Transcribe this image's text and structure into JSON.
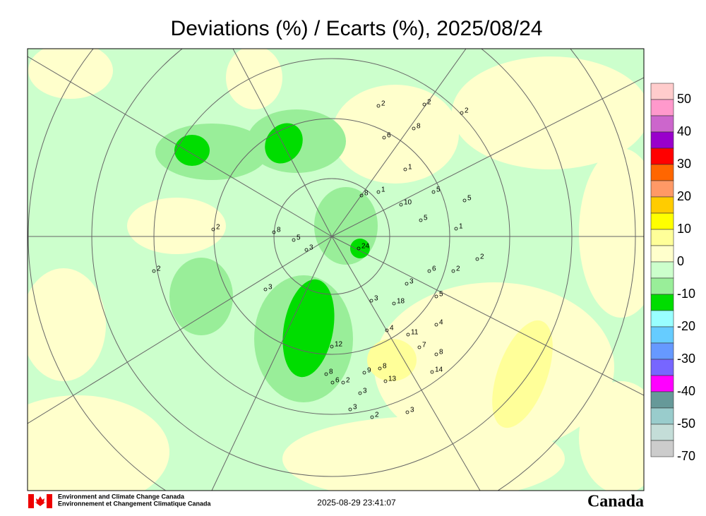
{
  "header": {
    "title": "Deviations (%) / Ecarts (%), 2025/08/24"
  },
  "legend": {
    "labels": [
      "50",
      "40",
      "30",
      "20",
      "10",
      "0",
      "-10",
      "-20",
      "-30",
      "-40",
      "-50",
      "-70"
    ],
    "colors": [
      "#ffcccc",
      "#ff99cc",
      "#cc66cc",
      "#9900cc",
      "#ff0000",
      "#ff6600",
      "#ff9966",
      "#ffcc00",
      "#ffff00",
      "#ffff99",
      "#ffffcc",
      "#ccffcc",
      "#99ee99",
      "#00dd00",
      "#99ffff",
      "#66ccff",
      "#6699ff",
      "#7766ff",
      "#ff00ff",
      "#669999",
      "#99cccc",
      "#c4ddd8",
      "#cccccc"
    ]
  },
  "stations": [
    "2",
    "2",
    "2",
    "8",
    "6",
    "1",
    "5",
    "8",
    "1",
    "10",
    "5",
    "5",
    "1",
    "2",
    "8",
    "5",
    "3",
    "24",
    "2",
    "2",
    "6",
    "2",
    "3",
    "3",
    "5",
    "3",
    "18",
    "4",
    "4",
    "11",
    "7",
    "8",
    "12",
    "9",
    "8",
    "13",
    "14",
    "8",
    "6",
    "2",
    "3",
    "3",
    "2",
    "3"
  ],
  "footer": {
    "agency_en": "Environment and Climate Change Canada",
    "agency_fr": "Environnement et Changement Climatique Canada",
    "timestamp": "2025-08-29 23:41:07",
    "wordmark": "Canada"
  }
}
